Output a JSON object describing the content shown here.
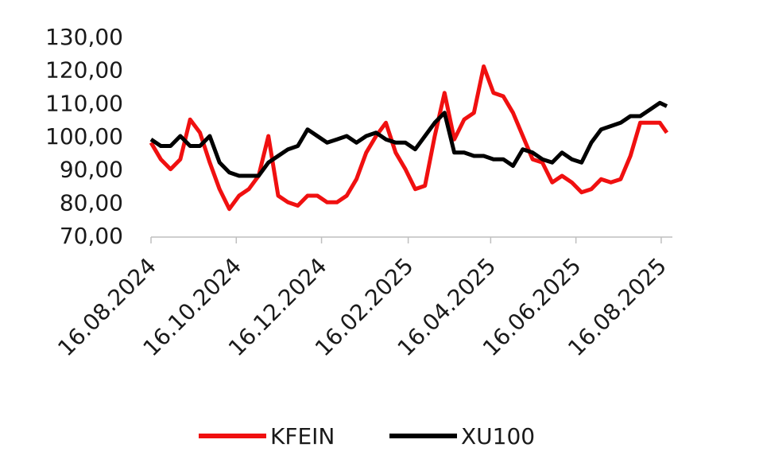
{
  "chart_data": {
    "type": "line",
    "x": [
      "2024-08-16",
      "2024-08-23",
      "2024-08-30",
      "2024-09-06",
      "2024-09-13",
      "2024-09-20",
      "2024-09-27",
      "2024-10-04",
      "2024-10-11",
      "2024-10-18",
      "2024-10-25",
      "2024-11-01",
      "2024-11-08",
      "2024-11-15",
      "2024-11-22",
      "2024-11-29",
      "2024-12-06",
      "2024-12-13",
      "2024-12-20",
      "2024-12-27",
      "2025-01-03",
      "2025-01-10",
      "2025-01-17",
      "2025-01-24",
      "2025-01-31",
      "2025-02-07",
      "2025-02-14",
      "2025-02-21",
      "2025-02-28",
      "2025-03-07",
      "2025-03-14",
      "2025-03-21",
      "2025-03-28",
      "2025-04-04",
      "2025-04-11",
      "2025-04-18",
      "2025-04-25",
      "2025-05-02",
      "2025-05-09",
      "2025-05-16",
      "2025-05-23",
      "2025-05-30",
      "2025-06-06",
      "2025-06-13",
      "2025-06-20",
      "2025-06-27",
      "2025-07-04",
      "2025-07-11",
      "2025-07-18",
      "2025-07-25",
      "2025-08-01",
      "2025-08-08",
      "2025-08-15",
      "2025-08-20"
    ],
    "series": [
      {
        "name": "KFEIN",
        "color": "#f01010",
        "values": [
          98,
          93,
          90,
          93,
          105,
          101,
          92,
          84,
          78,
          82,
          84,
          88,
          100,
          82,
          80,
          79,
          82,
          82,
          80,
          80,
          82,
          87,
          95,
          100,
          104,
          95,
          90,
          84,
          85,
          100,
          113,
          99,
          105,
          107,
          121,
          113,
          112,
          107,
          100,
          93,
          92,
          86,
          88,
          86,
          83,
          84,
          87,
          86,
          87,
          94,
          104,
          104,
          104,
          101
        ]
      },
      {
        "name": "XU100",
        "color": "#000000",
        "values": [
          99,
          97,
          97,
          100,
          97,
          97,
          100,
          92,
          89,
          88,
          88,
          88,
          92,
          94,
          96,
          97,
          102,
          100,
          98,
          99,
          100,
          98,
          100,
          101,
          99,
          98,
          98,
          96,
          100,
          104,
          107,
          95,
          95,
          94,
          94,
          93,
          93,
          91,
          96,
          95,
          93,
          92,
          95,
          93,
          92,
          98,
          102,
          103,
          104,
          106,
          106,
          108,
          110,
          109
        ]
      }
    ],
    "xlim": [
      "2024-08-16",
      "2025-08-24"
    ],
    "xticks": [
      {
        "value": "2024-08-16",
        "label": "16.08.2024"
      },
      {
        "value": "2024-10-16",
        "label": "16.10.2024"
      },
      {
        "value": "2024-12-16",
        "label": "16.12.2024"
      },
      {
        "value": "2025-02-16",
        "label": "16.02.2025"
      },
      {
        "value": "2025-04-16",
        "label": "16.04.2025"
      },
      {
        "value": "2025-06-16",
        "label": "16.06.2025"
      },
      {
        "value": "2025-08-16",
        "label": "16.08.2025"
      }
    ],
    "ylim": [
      70,
      130
    ],
    "yticks": [
      {
        "value": 70,
        "label": "70,00"
      },
      {
        "value": 80,
        "label": "80,00"
      },
      {
        "value": 90,
        "label": "90,00"
      },
      {
        "value": 100,
        "label": "100,00"
      },
      {
        "value": 110,
        "label": "110,00"
      },
      {
        "value": 120,
        "label": "120,00"
      },
      {
        "value": 130,
        "label": "130,00"
      }
    ]
  }
}
